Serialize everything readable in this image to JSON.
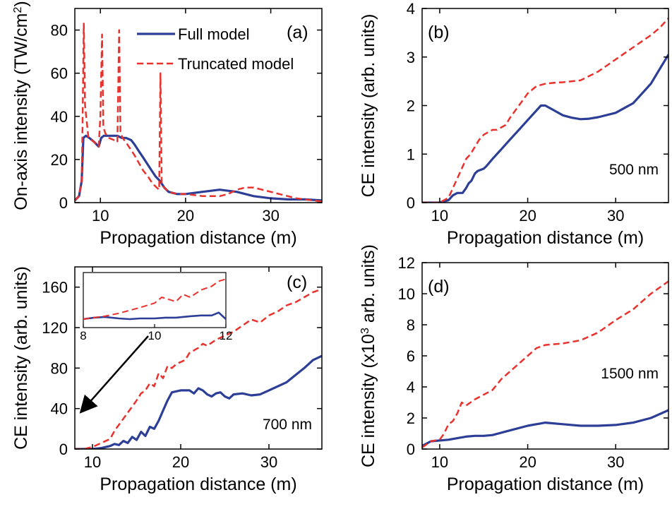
{
  "colors": {
    "full": "#2c3e96",
    "truncated": "#e8322d",
    "axis": "#000000"
  },
  "chart_data": [
    {
      "id": "a",
      "type": "line",
      "panel_label": "(a)",
      "xlabel": "Propagation distance (m)",
      "ylabel_main": "On-axis intensity (TW/cm",
      "ylabel_sup": "2",
      "ylabel_end": ")",
      "xlim": [
        7,
        36
      ],
      "ylim": [
        0,
        90
      ],
      "xticks": [
        10,
        20,
        30
      ],
      "yticks": [
        0,
        20,
        40,
        60,
        80
      ],
      "legend": {
        "position": "top-right",
        "entries": [
          "Full model",
          "Truncated model"
        ]
      },
      "series": [
        {
          "name": "Full model",
          "style": "solid",
          "x": [
            7,
            7.5,
            7.8,
            8,
            8.3,
            8.7,
            9.3,
            9.8,
            10.1,
            10.4,
            11,
            11.5,
            12,
            12.5,
            13,
            13.6,
            14,
            14.5,
            15,
            15.5,
            16,
            16.5,
            17,
            17.5,
            18,
            19,
            20,
            22,
            24,
            26,
            28,
            30,
            32,
            34,
            36
          ],
          "y": [
            1,
            3,
            10,
            30,
            31,
            30,
            28,
            26,
            30,
            31,
            31,
            31,
            31,
            30,
            30,
            29,
            27,
            24,
            21,
            18,
            15,
            12,
            10,
            7,
            5,
            4,
            4,
            5,
            6,
            5,
            3,
            2,
            1.5,
            1.5,
            1
          ]
        },
        {
          "name": "Truncated model",
          "style": "dashed",
          "x": [
            7,
            7.5,
            7.8,
            7.9,
            8.05,
            8.2,
            8.6,
            9.3,
            9.8,
            10,
            10.2,
            10.35,
            10.6,
            11,
            11.6,
            12,
            12.2,
            12.35,
            12.6,
            13,
            14,
            15,
            15.6,
            16.1,
            16.6,
            16.9,
            17.05,
            17.2,
            17.5,
            18,
            19,
            20,
            22,
            24,
            25,
            26,
            27,
            28,
            29,
            30,
            31,
            32,
            33,
            34,
            35,
            36
          ],
          "y": [
            1,
            3,
            10,
            35,
            83,
            45,
            30,
            28,
            26,
            40,
            78,
            35,
            32,
            30,
            29,
            28,
            80,
            33,
            30,
            28,
            22,
            15,
            12,
            9,
            7,
            6,
            60,
            8,
            7,
            5,
            4,
            4,
            3,
            3,
            4,
            6,
            7,
            7,
            6,
            5,
            4,
            3,
            2,
            1.5,
            1,
            0.5
          ]
        }
      ]
    },
    {
      "id": "b",
      "type": "line",
      "panel_label": "(b)",
      "annotation": "500 nm",
      "xlabel": "Propagation distance (m)",
      "ylabel": "CE intensity (arb. units)",
      "xlim": [
        8,
        36
      ],
      "ylim": [
        0,
        4
      ],
      "xticks": [
        10,
        20,
        30
      ],
      "yticks": [
        0,
        1,
        2,
        3,
        4
      ],
      "series": [
        {
          "name": "Full model",
          "style": "solid",
          "x": [
            8,
            10,
            11,
            11.5,
            12,
            12.6,
            13,
            13.3,
            13.6,
            14,
            14.3,
            15,
            15.3,
            16,
            17,
            18,
            19,
            20,
            21,
            21.5,
            22,
            23,
            24,
            25,
            26,
            27,
            28,
            30,
            32,
            34,
            35,
            36
          ],
          "y": [
            0,
            0,
            0.05,
            0.15,
            0.2,
            0.2,
            0.3,
            0.4,
            0.45,
            0.6,
            0.65,
            0.7,
            0.75,
            0.9,
            1.1,
            1.3,
            1.5,
            1.7,
            1.9,
            2.0,
            2.0,
            1.9,
            1.8,
            1.75,
            1.72,
            1.73,
            1.76,
            1.85,
            2.05,
            2.45,
            2.75,
            3.05
          ]
        },
        {
          "name": "Truncated model",
          "style": "dashed",
          "x": [
            8,
            9,
            10,
            11,
            11.5,
            12,
            12.5,
            13,
            13.5,
            14,
            14.5,
            15,
            15.5,
            16,
            16.5,
            17,
            17.5,
            18,
            19,
            20,
            21,
            22,
            23,
            24,
            25,
            26,
            28,
            30,
            32,
            34,
            35,
            36
          ],
          "y": [
            0,
            0,
            0,
            0.1,
            0.3,
            0.5,
            0.7,
            0.9,
            1.0,
            1.15,
            1.3,
            1.4,
            1.45,
            1.5,
            1.5,
            1.55,
            1.6,
            1.75,
            2.0,
            2.25,
            2.4,
            2.45,
            2.47,
            2.48,
            2.5,
            2.52,
            2.7,
            2.95,
            3.2,
            3.45,
            3.6,
            3.8
          ]
        }
      ]
    },
    {
      "id": "c",
      "type": "line",
      "panel_label": "(c)",
      "annotation": "700 nm",
      "xlabel": "Propagation distance (m)",
      "ylabel": "CE intensity (arb. units)",
      "xlim": [
        8,
        36
      ],
      "ylim": [
        0,
        180
      ],
      "xticks": [
        10,
        20,
        30
      ],
      "yticks": [
        0,
        40,
        80,
        120,
        160
      ],
      "series": [
        {
          "name": "Full model",
          "style": "solid",
          "x": [
            8,
            9,
            10,
            11,
            12,
            12.5,
            13,
            13.5,
            14,
            14.5,
            15,
            15.5,
            16,
            16.5,
            17,
            17.5,
            18,
            18.5,
            19,
            20,
            21,
            21.5,
            22,
            22.5,
            23,
            23.5,
            24,
            24.5,
            25,
            25.5,
            26,
            27,
            28,
            29,
            30,
            32,
            34,
            35,
            36
          ],
          "y": [
            0,
            0,
            0,
            1,
            3,
            5,
            4,
            8,
            6,
            12,
            9,
            17,
            13,
            22,
            20,
            28,
            38,
            48,
            56,
            58,
            58,
            55,
            60,
            58,
            54,
            52,
            55,
            56,
            52,
            50,
            54,
            55,
            53,
            54,
            58,
            66,
            80,
            88,
            92
          ]
        },
        {
          "name": "Truncated model",
          "style": "dashed",
          "x": [
            8,
            9,
            10,
            11,
            12,
            12.5,
            13,
            13.5,
            14,
            14.5,
            15,
            15.5,
            16,
            16.5,
            17,
            17.5,
            18,
            18.5,
            19,
            19.5,
            20,
            20.5,
            21,
            22,
            22.5,
            23,
            24,
            24.5,
            25,
            26,
            27,
            28,
            29,
            30,
            31,
            32,
            33,
            34,
            35,
            36
          ],
          "y": [
            0,
            0,
            2,
            6,
            10,
            18,
            24,
            30,
            36,
            42,
            48,
            55,
            58,
            65,
            62,
            75,
            70,
            82,
            80,
            84,
            86,
            88,
            95,
            100,
            104,
            102,
            108,
            110,
            112,
            116,
            122,
            128,
            125,
            132,
            136,
            142,
            145,
            150,
            155,
            158
          ]
        }
      ],
      "inset": {
        "xlim": [
          8,
          12
        ],
        "xticks": [
          8,
          10,
          12
        ],
        "series": [
          {
            "name": "Full model",
            "style": "solid",
            "x": [
              8,
              8.3,
              8.6,
              9,
              9.3,
              9.6,
              10,
              10.3,
              10.6,
              11,
              11.3,
              11.6,
              11.8,
              12
            ],
            "y": [
              0,
              2,
              3,
              1,
              0,
              1,
              1,
              2,
              2,
              4,
              5,
              5,
              9,
              0
            ]
          },
          {
            "name": "Truncated model",
            "style": "dashed",
            "x": [
              8,
              8.3,
              8.6,
              9,
              9.3,
              9.6,
              10,
              10.2,
              10.4,
              10.6,
              10.8,
              11,
              11.3,
              11.6,
              11.8,
              12
            ],
            "y": [
              0,
              2,
              4,
              8,
              12,
              16,
              22,
              30,
              27,
              24,
              34,
              30,
              40,
              45,
              52,
              55
            ]
          }
        ]
      },
      "arrow": {
        "from": [
          10.4,
          120
        ],
        "to": [
          10.4,
          15
        ]
      }
    },
    {
      "id": "d",
      "type": "line",
      "panel_label": "(d)",
      "annotation": "1500 nm",
      "xlabel": "Propagation distance (m)",
      "ylabel_main": "CE intensity (x10",
      "ylabel_sup": "3",
      "ylabel_end": " arb. units)",
      "xlim": [
        8,
        36
      ],
      "ylim": [
        0,
        12
      ],
      "xticks": [
        10,
        20,
        30
      ],
      "yticks": [
        0,
        2,
        4,
        6,
        8,
        10,
        12
      ],
      "series": [
        {
          "name": "Full model",
          "style": "solid",
          "x": [
            8,
            9,
            10,
            11,
            12,
            13,
            14,
            15,
            16,
            18,
            20,
            22,
            24,
            26,
            28,
            30,
            32,
            34,
            36
          ],
          "y": [
            0.2,
            0.5,
            0.55,
            0.6,
            0.7,
            0.8,
            0.85,
            0.85,
            0.9,
            1.2,
            1.5,
            1.7,
            1.6,
            1.5,
            1.5,
            1.55,
            1.7,
            2.0,
            2.5
          ]
        },
        {
          "name": "Truncated model",
          "style": "dashed",
          "x": [
            8,
            9,
            10,
            10.5,
            11,
            11.5,
            12,
            12.5,
            13,
            13.5,
            14,
            15,
            16,
            17,
            18,
            19,
            20,
            21,
            22,
            24,
            26,
            28,
            30,
            32,
            34,
            36
          ],
          "y": [
            0.1,
            0.5,
            0.6,
            1.0,
            1.6,
            1.8,
            2.3,
            3.0,
            2.8,
            3.0,
            3.2,
            3.5,
            3.8,
            4.5,
            5.0,
            5.5,
            6.0,
            6.5,
            6.7,
            6.8,
            7.0,
            7.5,
            8.3,
            9.0,
            10.0,
            10.8
          ]
        }
      ]
    }
  ]
}
